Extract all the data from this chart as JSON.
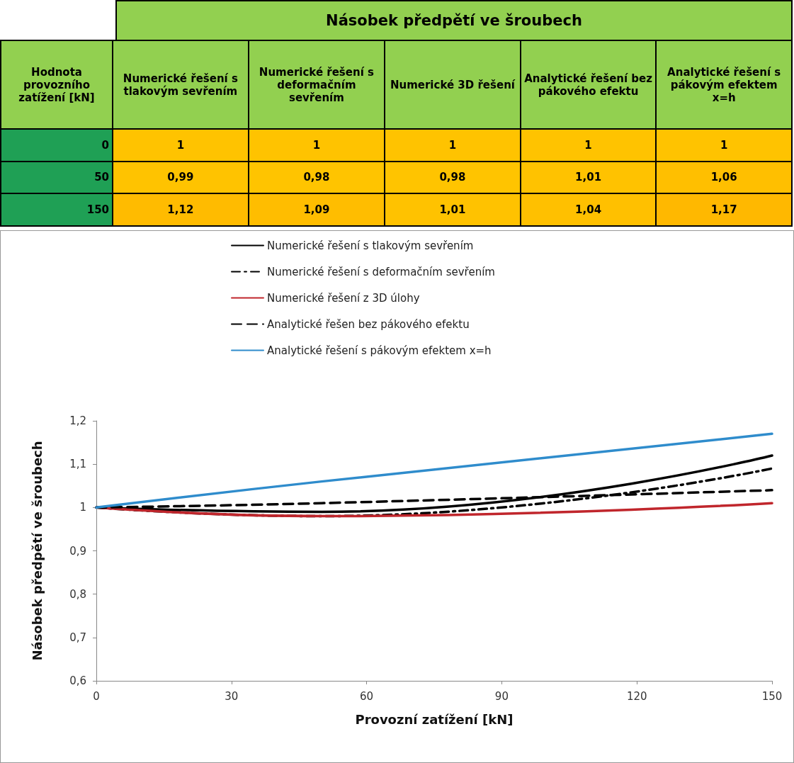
{
  "chart_data": [
    {
      "type": "heatmap",
      "title": "Násobek předpětí ve šroubech",
      "ylabel": "Hodnota provozního zatížení [kN]",
      "categories": [
        "Numerické řešení  s tlakovým sevřením",
        "Numerické řešení s deformačním sevřením",
        "Numerické 3D řešení",
        "Analytické řešení bez pákového efektu",
        "Analytické řešení s pákovým efektem x=h"
      ],
      "y_categories": [
        "0",
        "50",
        "150"
      ],
      "cells": [
        [
          1,
          1,
          1,
          1,
          1
        ],
        [
          0.99,
          0.98,
          0.98,
          1.01,
          1.06
        ],
        [
          1.12,
          1.09,
          1.01,
          1.04,
          1.17
        ]
      ],
      "cell_labels": [
        [
          "1",
          "1",
          "1",
          "1",
          "1"
        ],
        [
          "0,99",
          "0,98",
          "0,98",
          "1,01",
          "1,06"
        ],
        [
          "1,12",
          "1,09",
          "1,01",
          "1,04",
          "1,17"
        ]
      ]
    },
    {
      "type": "line",
      "xlabel": "Provozní zatížení [kN]",
      "ylabel": "Násobek předpětí ve šroubech",
      "x": [
        0,
        50,
        150
      ],
      "series": [
        {
          "name": "Numerické řešení s tlakovým sevřením",
          "color": "#000000",
          "line_style": "solid",
          "values": [
            1,
            0.99,
            1.12
          ]
        },
        {
          "name": "Numerické řešení s deformačním sevřením",
          "color": "#000000",
          "line_style": "dotted",
          "values": [
            1,
            0.98,
            1.09
          ]
        },
        {
          "name": "Numerické řešení z 3D úlohy",
          "color": "#c0262c",
          "line_style": "solid",
          "values": [
            1,
            0.98,
            1.01
          ]
        },
        {
          "name": "Analytické řešen bez pákového efektu",
          "color": "#000000",
          "line_style": "dashed",
          "values": [
            1,
            1.01,
            1.04
          ]
        },
        {
          "name": "Analytické řešení s pákovým efektem x=h",
          "color": "#2f8ccc",
          "line_style": "solid",
          "values": [
            1,
            1.06,
            1.17
          ]
        }
      ],
      "xlim": [
        0,
        150
      ],
      "xticks": [
        0,
        30,
        60,
        90,
        120,
        150
      ],
      "ylim": [
        0.6,
        1.2
      ],
      "yticks": [
        {
          "value": 0.6,
          "label": "0,6"
        },
        {
          "value": 0.7,
          "label": "0,7"
        },
        {
          "value": 0.8,
          "label": "0,8"
        },
        {
          "value": 0.9,
          "label": "0,9"
        },
        1,
        {
          "value": 1.1,
          "label": "1,1"
        },
        {
          "value": 1.2,
          "label": "1,2"
        }
      ],
      "grid": false,
      "legend": "top",
      "marker": "none"
    }
  ]
}
